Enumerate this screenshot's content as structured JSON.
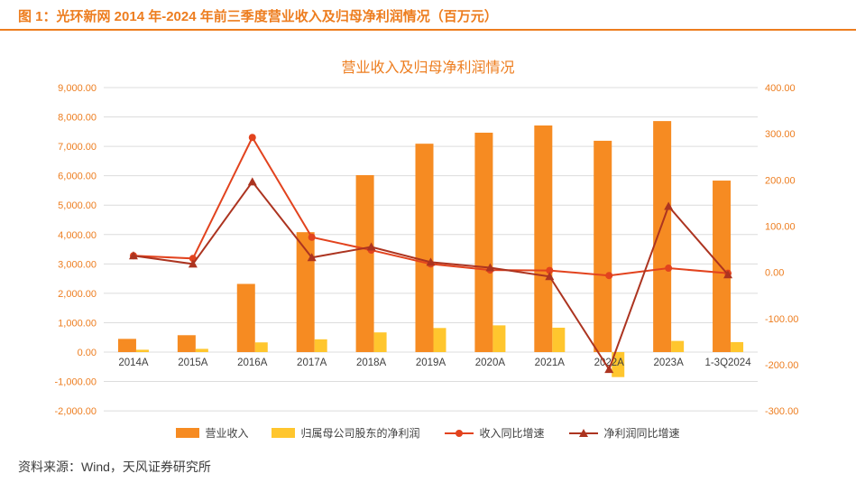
{
  "page": {
    "caption": "图 1：光环新网 2014 年-2024 年前三季度营业收入及归母净利润情况（百万元）",
    "source": "资料来源：Wind，天风证券研究所",
    "accent_color": "#ED7D1F"
  },
  "chart_data": {
    "type": "bar",
    "subtype": "combo-bar-line-dual-axis",
    "title": "营业收入及归母净利润情况",
    "categories": [
      "2014A",
      "2015A",
      "2016A",
      "2017A",
      "2018A",
      "2019A",
      "2020A",
      "2021A",
      "2022A",
      "2023A",
      "1-3Q2024"
    ],
    "series": [
      {
        "key": "revenue",
        "name": "营业收入",
        "type": "bar",
        "axis": "left",
        "color": "#F68B22",
        "values": [
          450,
          575,
          2320,
          4080,
          6020,
          7090,
          7465,
          7710,
          7190,
          7860,
          5835
        ]
      },
      {
        "key": "net-profit",
        "name": "归属母公司股东的净利润",
        "type": "bar",
        "axis": "left",
        "color": "#FFC62E",
        "values": [
          80,
          110,
          330,
          435,
          670,
          820,
          910,
          830,
          -850,
          380,
          340
        ]
      },
      {
        "key": "revenue-growth",
        "name": "收入同比增速",
        "type": "line",
        "marker": "circle",
        "axis": "right",
        "color": "#E2431E",
        "values": [
          36,
          30,
          292,
          76,
          48,
          18,
          5,
          4,
          -7,
          9,
          -2
        ]
      },
      {
        "key": "net-profit-growth",
        "name": "净利润同比增速",
        "type": "line",
        "marker": "triangle",
        "axis": "right",
        "color": "#AC3420",
        "values": [
          36,
          18,
          196,
          32,
          55,
          22,
          10,
          -9,
          -210,
          143,
          -5
        ]
      }
    ],
    "left_axis": {
      "min": -2000,
      "max": 9000,
      "step": 1000
    },
    "right_axis": {
      "min": -300,
      "max": 400,
      "step": 100
    },
    "axis_label_color": "#ED7D1F",
    "x_label_color": "#404040",
    "gridline_color": "#DCDCDC",
    "grid": true,
    "legend_position": "bottom"
  }
}
